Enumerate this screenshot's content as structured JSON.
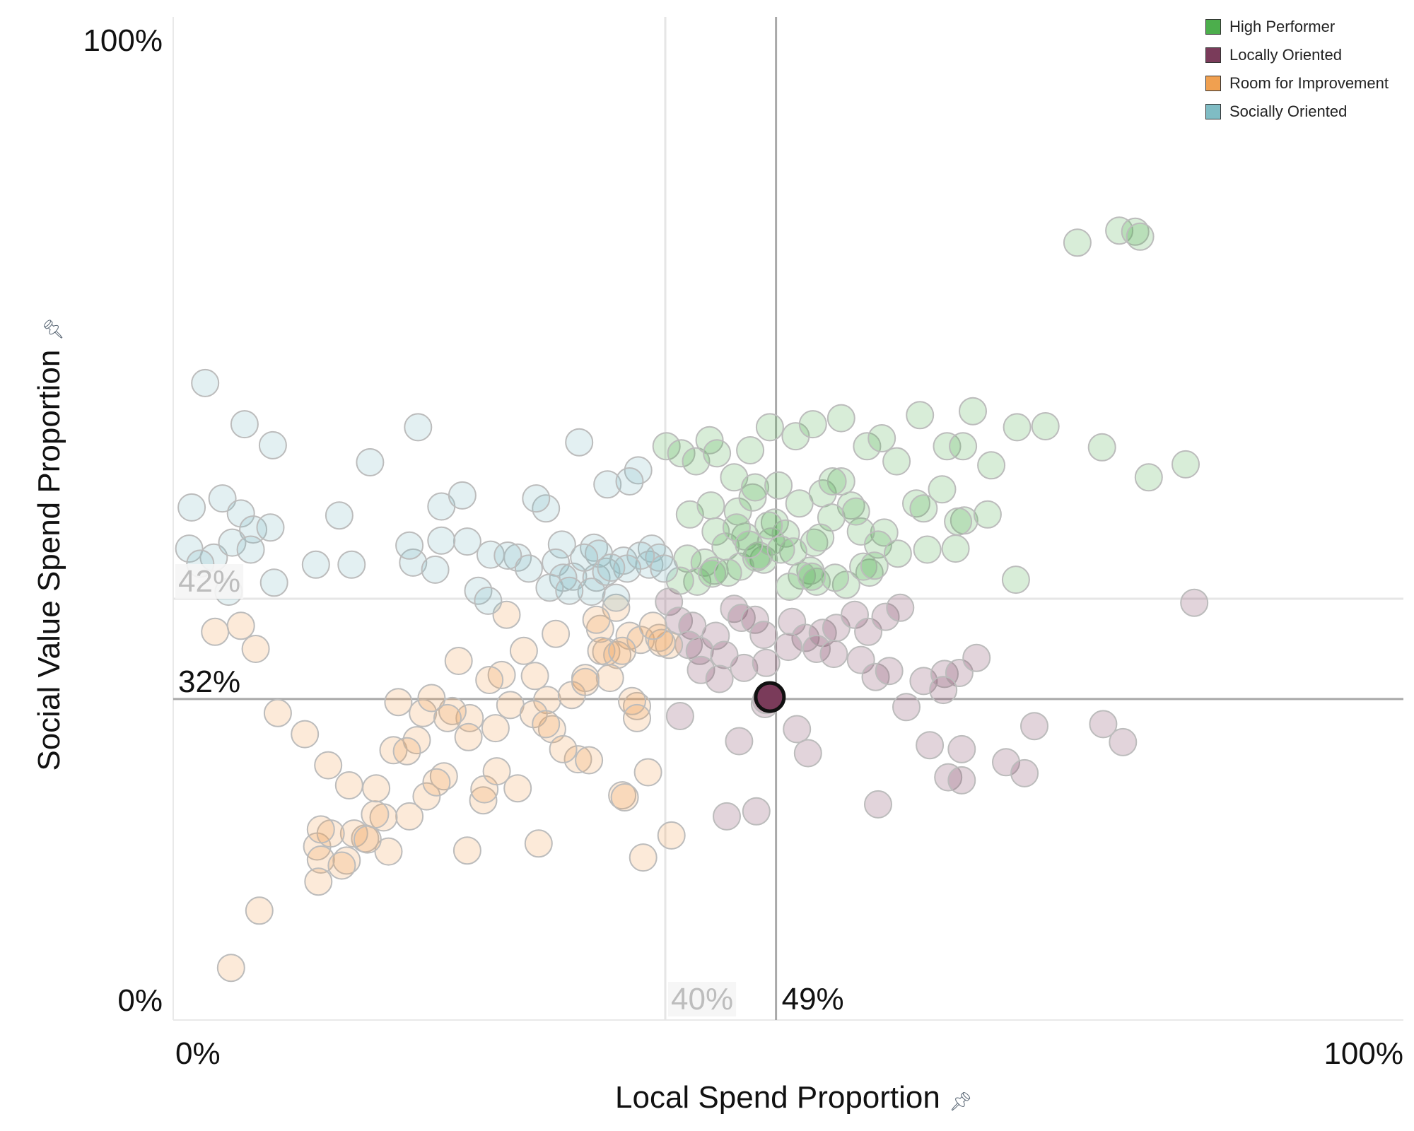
{
  "chart_data": {
    "type": "scatter",
    "xlabel": "Local Spend Proportion",
    "ylabel": "Social Value Spend Proportion",
    "xlim": [
      0,
      100
    ],
    "ylim": [
      0,
      100
    ],
    "x_ticks": [
      "0%",
      "100%"
    ],
    "y_ticks": [
      "0%",
      "100%"
    ],
    "grid": false,
    "legend_position": "top-right",
    "reference_lines": {
      "average": {
        "x": 40,
        "y": 42,
        "x_label": "40%",
        "y_label": "42%"
      },
      "selected": {
        "x": 49,
        "y": 32,
        "x_label": "49%",
        "y_label": "32%"
      }
    },
    "selected_point": {
      "x": 48.5,
      "y": 32.2
    },
    "series": [
      {
        "name": "High Performer",
        "color": "#4cae4c",
        "x": [
          40.1,
          41.3,
          42.5,
          43.6,
          44.2,
          45.6,
          46.9,
          48.5,
          50.6,
          52.0,
          54.3,
          56.4,
          57.6,
          58.8,
          60.7,
          62.9,
          64.2,
          65.0,
          66.5,
          68.6,
          70.9,
          73.5,
          76.9,
          78.2,
          82.3,
          42.0,
          44.1,
          45.9,
          47.1,
          48.9,
          50.9,
          52.8,
          54.3,
          55.1,
          57.8,
          60.4,
          62.5,
          64.3,
          66.2,
          41.8,
          43.2,
          44.9,
          46.5,
          48.0,
          49.8,
          52.1,
          53.5,
          55.9,
          57.3,
          58.9,
          61.3,
          63.6,
          68.5,
          42.6,
          44.0,
          46.1,
          47.4,
          48.6,
          50.4,
          51.8,
          54.7,
          56.6,
          41.2,
          43.8,
          45.1,
          47.6,
          49.4,
          51.1,
          52.3,
          53.8,
          56.1,
          57.0,
          61.0,
          63.8,
          75.5,
          79.3,
          78.6,
          47.3,
          45.8,
          43.7,
          53.6,
          49.2,
          48.4,
          46.8,
          50.1,
          51.9,
          52.6,
          55.5
        ],
        "y": [
          57.2,
          56.5,
          55.7,
          57.8,
          56.5,
          54.1,
          56.8,
          59.1,
          58.2,
          59.4,
          60.0,
          57.2,
          58.0,
          55.7,
          60.3,
          57.2,
          57.2,
          60.7,
          55.3,
          59.1,
          59.2,
          77.5,
          78.7,
          78.6,
          55.4,
          50.4,
          48.7,
          50.7,
          52.1,
          49.6,
          51.5,
          52.5,
          53.7,
          51.3,
          48.6,
          51.5,
          52.9,
          49.8,
          50.4,
          46.0,
          45.6,
          47.2,
          48.2,
          45.9,
          48.5,
          47.6,
          50.1,
          48.7,
          47.4,
          46.5,
          46.9,
          47.0,
          43.9,
          43.7,
          44.8,
          45.2,
          46.1,
          47.7,
          46.7,
          44.8,
          43.4,
          44.6,
          43.8,
          44.5,
          44.6,
          46.3,
          46.9,
          44.3,
          43.7,
          44.1,
          45.2,
          45.3,
          51.0,
          49.7,
          57.1,
          54.1,
          78.1,
          53.1,
          49.1,
          51.3,
          53.7,
          53.3,
          49.3,
          47.4,
          43.2,
          44.2,
          48.1,
          50.7
        ]
      },
      {
        "name": "Locally Oriented",
        "color": "#7a3b5a",
        "x": [
          40.3,
          41.1,
          42.2,
          44.1,
          45.6,
          46.2,
          47.3,
          48.0,
          50.3,
          51.4,
          52.8,
          53.9,
          55.4,
          56.5,
          57.9,
          59.1,
          61.0,
          62.7,
          63.9,
          65.3,
          70.0,
          75.6,
          83.0,
          41.9,
          42.8,
          44.8,
          46.4,
          48.2,
          50.0,
          52.3,
          53.7,
          55.9,
          57.1,
          61.5,
          63.0,
          64.1,
          67.7,
          42.9,
          44.4,
          46.0,
          48.1,
          50.7,
          51.6,
          58.2,
          59.6,
          64.1,
          69.2,
          77.2,
          45.0,
          47.4,
          41.2,
          48.2,
          57.3,
          62.6
        ],
        "y": [
          41.7,
          39.8,
          39.3,
          38.3,
          41.0,
          40.1,
          39.9,
          38.4,
          39.7,
          38.1,
          38.6,
          39.1,
          40.4,
          38.7,
          40.2,
          41.1,
          33.8,
          34.5,
          34.6,
          36.1,
          29.3,
          29.5,
          41.6,
          37.4,
          36.8,
          36.4,
          35.1,
          35.6,
          37.2,
          37.0,
          36.5,
          35.9,
          34.2,
          27.4,
          24.2,
          27.0,
          25.7,
          34.9,
          34.0,
          27.8,
          31.5,
          29.0,
          26.6,
          34.8,
          31.2,
          23.9,
          24.6,
          27.7,
          20.3,
          20.8,
          30.3,
          31.9,
          21.5,
          32.9
        ]
      },
      {
        "name": "Room for Improvement",
        "color": "#f0a050",
        "x": [
          3.4,
          5.5,
          6.7,
          8.5,
          10.7,
          12.6,
          15.6,
          19.2,
          22.0,
          25.2,
          28.0,
          29.7,
          32.9,
          36.5,
          38.6,
          4.7,
          7.0,
          11.7,
          14.3,
          17.9,
          20.6,
          24.1,
          26.7,
          30.4,
          33.5,
          35.2,
          37.1,
          38.0,
          40.3,
          12.0,
          14.7,
          17.1,
          19.8,
          22.7,
          26.2,
          29.4,
          31.1,
          34.7,
          36.1,
          37.7,
          39.5,
          11.8,
          14.1,
          17.5,
          21.4,
          24.0,
          27.4,
          30.8,
          33.8,
          36.7,
          38.2,
          12.8,
          16.4,
          20.3,
          23.2,
          28.5,
          35.5,
          37.3,
          16.5,
          19.0,
          21.0,
          25.7,
          27.1,
          29.3,
          31.7,
          32.4,
          34.8,
          39.7,
          12.0,
          13.7,
          15.8,
          23.9,
          37.7,
          30.3,
          18.3,
          22.3,
          25.3,
          26.3,
          40.5,
          33.5,
          36.0,
          39.0,
          34.4,
          36.5
        ],
        "y": [
          38.7,
          39.3,
          37.0,
          30.6,
          28.5,
          25.4,
          18.1,
          20.3,
          24.3,
          21.9,
          23.1,
          17.6,
          26.0,
          22.4,
          24.7,
          5.2,
          10.9,
          17.3,
          23.4,
          26.9,
          22.3,
          30.1,
          34.4,
          31.9,
          34.1,
          36.7,
          38.3,
          37.9,
          37.4,
          16.0,
          18.6,
          20.2,
          27.9,
          30.8,
          29.1,
          34.3,
          38.5,
          39.0,
          36.4,
          31.3,
          38.1,
          13.8,
          15.9,
          16.8,
          23.7,
          28.2,
          31.4,
          29.0,
          25.9,
          22.2,
          16.2,
          18.6,
          20.5,
          30.6,
          35.8,
          36.8,
          34.1,
          31.8,
          23.1,
          26.8,
          32.1,
          33.9,
          40.4,
          30.5,
          27.0,
          32.4,
          36.8,
          37.6,
          19.0,
          15.4,
          18.0,
          16.9,
          30.1,
          29.5,
          31.7,
          30.1,
          23.0,
          24.8,
          18.4,
          33.7,
          41.1,
          39.3,
          39.9,
          36.8
        ]
      },
      {
        "name": "Socially Oriented",
        "color": "#7fbcc4",
        "x": [
          2.6,
          5.8,
          8.1,
          1.5,
          4.0,
          5.5,
          6.5,
          7.9,
          1.3,
          3.3,
          4.8,
          6.3,
          8.2,
          2.2,
          4.5,
          13.5,
          16.0,
          19.9,
          21.8,
          23.5,
          25.8,
          28.0,
          30.3,
          33.0,
          35.3,
          37.8,
          14.5,
          19.5,
          23.9,
          27.2,
          31.6,
          34.2,
          36.6,
          38.9,
          19.2,
          21.8,
          24.8,
          28.9,
          31.1,
          32.5,
          34.4,
          36.0,
          38.7,
          11.6,
          21.3,
          25.6,
          31.7,
          34.6,
          37.1,
          39.5,
          29.5,
          34.0,
          38.0,
          39.9,
          30.6,
          32.2,
          35.2,
          36.9,
          33.4,
          35.6
        ],
        "y": [
          63.5,
          59.4,
          57.3,
          51.1,
          52.0,
          50.5,
          48.9,
          49.1,
          47.0,
          46.1,
          47.6,
          46.9,
          43.6,
          45.5,
          42.7,
          50.3,
          55.6,
          59.1,
          51.2,
          52.3,
          46.4,
          46.1,
          51.0,
          57.6,
          53.4,
          54.8,
          45.4,
          45.6,
          47.7,
          46.3,
          47.4,
          47.1,
          45.8,
          47.0,
          47.3,
          47.8,
          42.8,
          45.0,
          45.6,
          44.2,
          44.1,
          42.1,
          45.4,
          45.4,
          44.9,
          41.8,
          44.1,
          46.5,
          53.7,
          46.1,
          52.0,
          42.7,
          46.3,
          45.0,
          43.1,
          42.8,
          44.7,
          45.0,
          46.1,
          45.1
        ]
      }
    ]
  }
}
